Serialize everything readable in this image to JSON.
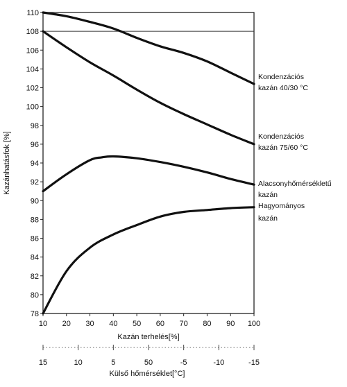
{
  "chart_data": {
    "type": "line",
    "title": "",
    "xlabel": "Kazán terhelés[%]",
    "ylabel": "Kazánhatásfok [%]",
    "xlabel2": "Külső hőmérséklet[°C]",
    "x": [
      10,
      20,
      30,
      40,
      50,
      60,
      70,
      80,
      90,
      100
    ],
    "xlim": [
      10,
      100
    ],
    "ylim": [
      78,
      110
    ],
    "x_ticks": [
      "10",
      "20",
      "30",
      "40",
      "50",
      "60",
      "70",
      "80",
      "90",
      "100"
    ],
    "y_ticks": [
      "78",
      "80",
      "82",
      "84",
      "86",
      "88",
      "90",
      "92",
      "94",
      "96",
      "98",
      "100",
      "102",
      "104",
      "106",
      "108",
      "110"
    ],
    "x2_ticks": [
      "15",
      "10",
      "5",
      "50",
      "-5",
      "-10",
      "-15"
    ],
    "x2_tick_positions": [
      10,
      25,
      40,
      55,
      70,
      85,
      100
    ],
    "grid": false,
    "reference_lines": [
      108
    ],
    "series": [
      {
        "name": "Kondenzációs kazán 40/30 °C",
        "lines": [
          "Kondenzációs",
          "kazán 40/30 °C"
        ],
        "points": [
          [
            10,
            110.0
          ],
          [
            20,
            109.6
          ],
          [
            30,
            109.0
          ],
          [
            40,
            108.3
          ],
          [
            50,
            107.3
          ],
          [
            60,
            106.4
          ],
          [
            70,
            105.7
          ],
          [
            80,
            104.8
          ],
          [
            90,
            103.6
          ],
          [
            100,
            102.4
          ]
        ]
      },
      {
        "name": "Kondenzációs kazán 75/60 °C",
        "lines": [
          "Kondenzációs",
          "kazán 75/60 °C"
        ],
        "points": [
          [
            10,
            108.0
          ],
          [
            20,
            106.3
          ],
          [
            30,
            104.7
          ],
          [
            40,
            103.3
          ],
          [
            50,
            101.8
          ],
          [
            60,
            100.4
          ],
          [
            70,
            99.2
          ],
          [
            80,
            98.1
          ],
          [
            90,
            97.0
          ],
          [
            100,
            96.0
          ]
        ]
      },
      {
        "name": "Alacsonyhőmérsékletű kazán",
        "lines": [
          "Alacsonyhőmérsékletű",
          "kazán"
        ],
        "points": [
          [
            10,
            91.0
          ],
          [
            20,
            92.8
          ],
          [
            30,
            94.3
          ],
          [
            35,
            94.6
          ],
          [
            40,
            94.7
          ],
          [
            50,
            94.5
          ],
          [
            60,
            94.1
          ],
          [
            70,
            93.6
          ],
          [
            80,
            93.0
          ],
          [
            90,
            92.3
          ],
          [
            100,
            91.7
          ]
        ]
      },
      {
        "name": "Hagyományos kazán",
        "lines": [
          "Hagyományos",
          "kazán"
        ],
        "points": [
          [
            10,
            78.0
          ],
          [
            20,
            82.5
          ],
          [
            30,
            85.0
          ],
          [
            40,
            86.4
          ],
          [
            50,
            87.4
          ],
          [
            60,
            88.3
          ],
          [
            70,
            88.8
          ],
          [
            80,
            89.0
          ],
          [
            90,
            89.2
          ],
          [
            100,
            89.3
          ]
        ]
      }
    ]
  }
}
